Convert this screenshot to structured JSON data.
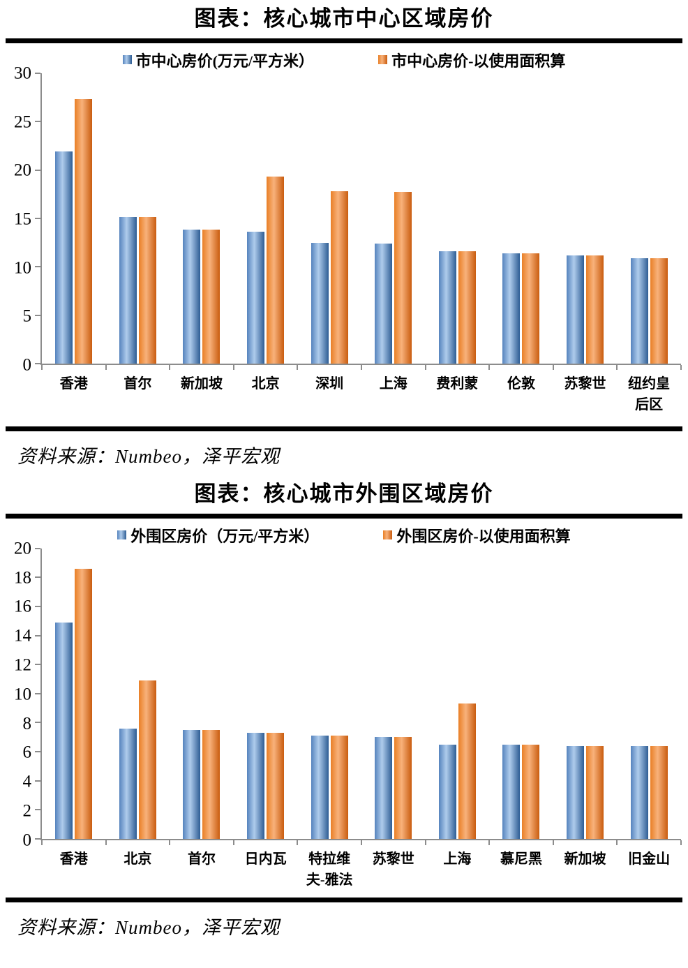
{
  "page": {
    "source_note": "资料来源：Numbeo，泽平宏观"
  },
  "colors": {
    "bar_blue_edge": "#5583BD",
    "bar_blue_mid": "#AFCCEC",
    "bar_blue_dark": "#2E5D94",
    "bar_orange_edge": "#E97F26",
    "bar_orange_mid": "#F8B27B",
    "bar_orange_dark": "#C95C0F",
    "axis_gray": "#8C8C8C",
    "divider_black": "#000000"
  },
  "chart_data": [
    {
      "type": "bar",
      "title": "图表：核心城市中心区域房价",
      "categories": [
        "香港",
        "首尔",
        "新加坡",
        "北京",
        "深圳",
        "上海",
        "费利蒙",
        "伦敦",
        "苏黎世",
        "纽约皇后区"
      ],
      "series": [
        {
          "name": "市中心房价(万元/平方米）",
          "color_key": "blue",
          "values": [
            21.9,
            15.1,
            13.8,
            13.6,
            12.5,
            12.4,
            11.6,
            11.4,
            11.2,
            10.9
          ]
        },
        {
          "name": "市中心房价-以使用面积算",
          "color_key": "orange",
          "values": [
            27.3,
            15.1,
            13.8,
            19.3,
            17.8,
            17.7,
            11.6,
            11.4,
            11.2,
            10.9
          ]
        }
      ],
      "xlabel": "",
      "ylabel": "",
      "ylim": [
        0,
        30
      ],
      "yticks": [
        0,
        5,
        10,
        15,
        20,
        25,
        30
      ],
      "grid": false,
      "legend_position": "top",
      "source": "资料来源：Numbeo，泽平宏观"
    },
    {
      "type": "bar",
      "title": "图表：核心城市外围区域房价",
      "categories": [
        "香港",
        "北京",
        "首尔",
        "日内瓦",
        "特拉维夫-雅法",
        "苏黎世",
        "上海",
        "慕尼黑",
        "新加坡",
        "旧金山"
      ],
      "series": [
        {
          "name": "外围区房价（万元/平方米）",
          "color_key": "blue",
          "values": [
            14.9,
            7.6,
            7.5,
            7.3,
            7.1,
            7.0,
            6.5,
            6.5,
            6.4,
            6.4
          ]
        },
        {
          "name": "外围区房价-以使用面积算",
          "color_key": "orange",
          "values": [
            18.6,
            10.9,
            7.5,
            7.3,
            7.1,
            7.0,
            9.3,
            6.5,
            6.4,
            6.4
          ]
        }
      ],
      "xlabel": "",
      "ylabel": "",
      "ylim": [
        0,
        20
      ],
      "yticks": [
        0,
        2,
        4,
        6,
        8,
        10,
        12,
        14,
        16,
        18,
        20
      ],
      "grid": false,
      "legend_position": "top",
      "source": "资料来源：Numbeo，泽平宏观"
    }
  ]
}
